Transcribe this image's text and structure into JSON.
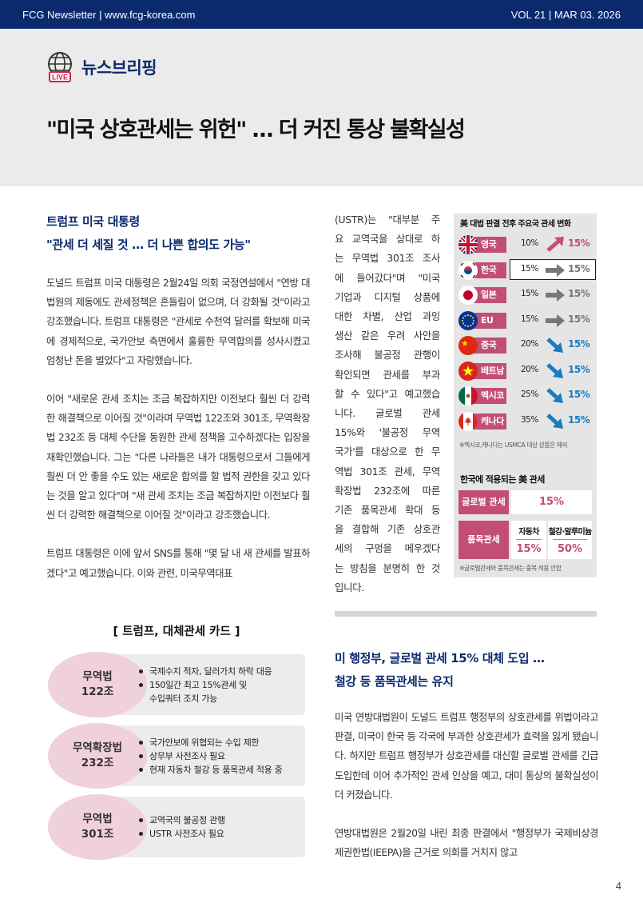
{
  "header": {
    "left": "FCG Newsletter | www.fcg-korea.com",
    "right": "VOL 21  | MAR 03. 2026"
  },
  "section": {
    "icon": "globe-live-icon",
    "icon_text": "LIVE",
    "label": "뉴스브리핑"
  },
  "headline": "\"미국 상호관세는 위헌\" … 더 커진 통상 불확실성",
  "left_column": {
    "subhead_1": "트럼프 미국 대통령",
    "subhead_2": "\"관세 더 세질 것 … 더 나쁜 합의도 가능\"",
    "paragraphs": [
      "도널드 트럼프 미국 대통령은 2월24일 의회 국정연설에서 \"연방 대법원의 제동에도 관세정책은 흔들림이 없으며, 더 강화될 것\"이라고 강조했습니다. 트럼프 대통령은 \"관세로 수천억 달러를 확보해 미국에 경제적으로, 국가안보 측면에서 훌륭한 무역합의를 성사시켰고 엄청난 돈을 벌었다\"고 자랑했습니다.",
      "이어 \"새로운 관세 조치는 조금 복잡하지만 이전보다 훨씬 더 강력한 해결책으로 이어질 것\"이라며 무역법 122조와 301조, 무역확장법 232조 등 대체 수단을 동원한 관세 정책을 고수하겠다는 입장을 재확인했습니다. 그는 \"다른 나라들은 내가 대통령으로서 그들에게 훨씬 더 안 좋을 수도 있는 새로운 합의를 할 법적 권한을 갖고 있다는 것을 알고 있다\"며 \"새 관세 조치는 조금 복잡하지만 이전보다 훨씬 더 강력한 해결책으로 이어질 것\"이라고 강조했습니다.",
      "트럼프 대통령은 이에 앞서 SNS를 통해 \"몇 달 내 새 관세를 발표하겠다\"고 예고했습니다. 이와 관련, 미국무역대표"
    ]
  },
  "cards": {
    "title": "[ 트럼프, 대체관세 카드 ]",
    "items": [
      {
        "badge_1": "무역법",
        "badge_2": "122조",
        "bullets": [
          "국제수지 적자, 달러가치 하락 대응",
          "150일간 최고 15%관세 및"
        ],
        "continuation": "수입쿼터 조치 가능"
      },
      {
        "badge_1": "무역확장법",
        "badge_2": "232조",
        "bullets": [
          "국가안보에 위협되는 수입 제한",
          "상무부 사전조사 필요",
          "현재 자동차 철강 등 품목관세 적용 중"
        ]
      },
      {
        "badge_1": "무역법",
        "badge_2": "301조",
        "bullets": [
          "교역국의 불공정 관행",
          "USTR 사전조사 필요"
        ]
      }
    ]
  },
  "middle_column": {
    "lines": [
      "(USTR)는 \"대부분 주",
      "요 교역국을 상대로 하",
      "는 무역법 301조 조사",
      "에 들어갔다\"며 \"미국",
      "기업과 디지털 상품에",
      "대한 차별, 산업 과잉",
      "생산 같은 우려 사안을",
      "조사해 불공정 관행이",
      "확인되면 관세를 부과",
      "할 수 있다\"고 예고했습",
      "니다. 글로벌 관세",
      "15%와 '불공정 무역",
      "국가'를 대상으로 한 무",
      "역법 301조 관세, 무역",
      "확장법 232조에 따른",
      "기존 품목관세 확대 등",
      "을 결합해 기존 상호관",
      "세의 구멍을 메우겠다",
      "는 방침을 분명히 한 것",
      "입니다."
    ]
  },
  "infographic": {
    "title": "美 대법 판결 전후 주요국 관세 변화",
    "rows": [
      {
        "country": "영국",
        "flag": "uk-flag-icon",
        "before": "10%",
        "after": "15%",
        "direction": "up"
      },
      {
        "country": "한국",
        "flag": "korea-flag-icon",
        "before": "15%",
        "after": "15%",
        "direction": "flat",
        "highlight": true
      },
      {
        "country": "일본",
        "flag": "japan-flag-icon",
        "before": "15%",
        "after": "15%",
        "direction": "flat"
      },
      {
        "country": "EU",
        "flag": "eu-flag-icon",
        "before": "15%",
        "after": "15%",
        "direction": "flat"
      },
      {
        "country": "중국",
        "flag": "china-flag-icon",
        "before": "20%",
        "after": "15%",
        "direction": "down"
      },
      {
        "country": "베트남",
        "flag": "vietnam-flag-icon",
        "before": "20%",
        "after": "15%",
        "direction": "down"
      },
      {
        "country": "멕시코",
        "flag": "mexico-flag-icon",
        "before": "25%",
        "after": "15%",
        "direction": "down"
      },
      {
        "country": "캐나다",
        "flag": "canada-flag-icon",
        "before": "35%",
        "after": "15%",
        "direction": "down"
      }
    ],
    "note_1": "※멕시코,캐나다는 USMCA 대상 상품은 제외",
    "subtitle": "한국에 적용되는 美 관세",
    "global_label": "글로벌 관세",
    "global_value": "15%",
    "item_label": "품목관세",
    "item_cols": [
      {
        "head": "자동차",
        "value": "15%"
      },
      {
        "head": "철강·알루미늄",
        "value": "50%"
      }
    ],
    "note_2": "※글로벌관세와 품목관세는 중복 적용 안함",
    "colors": {
      "label_bg": "#c24d75",
      "up": "#c24d75",
      "flat": "#777777",
      "down": "#1a7bc0"
    }
  },
  "right_column": {
    "subhead_1": "미 행정부, 글로벌 관세 15% 대체 도입 …",
    "subhead_2": "철강 등 품목관세는 유지",
    "paragraphs": [
      "미국 연방대법원이 도널드 트럼프 행정부의 상호관세를 위법이라고 판결, 미국이 한국 등 각국에 부과한 상호관세가 효력을 잃게 됐습니다. 하지만 트럼프 행정부가 상호관세를 대신할 글로벌 관세를 긴급 도입한데 이어 추가적인 관세 인상을 예고, 대미 통상의 불확실성이 더 커졌습니다.",
      "연방대법원은 2월20일 내린 최종 판결에서 \"행정부가 국제비상경제권한법(IEEPA)을 근거로 의회를 거치지 않고"
    ]
  },
  "page_number": "4"
}
